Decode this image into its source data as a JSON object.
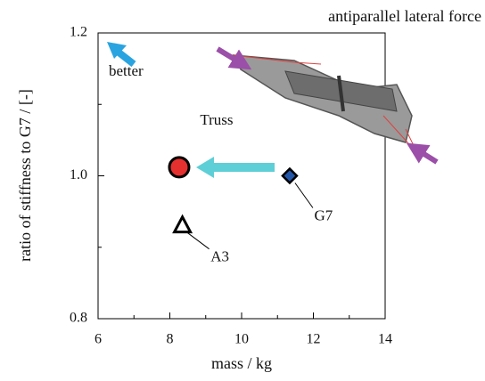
{
  "chart_data": {
    "type": "scatter",
    "title": "antiparallel lateral force",
    "xlabel": "mass / kg",
    "ylabel": "ratio of stiffness to G7 / [-]",
    "xlim": [
      6,
      14
    ],
    "xticks": [
      6,
      8,
      10,
      12,
      14
    ],
    "xminor": [
      7,
      9,
      11,
      13
    ],
    "ylim": [
      0.8,
      1.2
    ],
    "yticks": [
      {
        "value": 0.8,
        "label": "0.8"
      },
      {
        "value": 1.0,
        "label": "1.0"
      },
      {
        "value": 1.2,
        "label": "1.2"
      }
    ],
    "yminor": [
      0.9,
      1.1
    ],
    "annotation": "better",
    "points": [
      {
        "name": "Truss",
        "x": 8.26,
        "y": 1.012,
        "color": "#e53030",
        "marker": "circle"
      },
      {
        "name": "G7",
        "x": 11.34,
        "y": 1.0,
        "color": "#2456a8",
        "marker": "diamond"
      },
      {
        "name": "A3",
        "x": 8.35,
        "y": 0.93,
        "color": "#ffffff",
        "marker": "triangle"
      }
    ]
  }
}
